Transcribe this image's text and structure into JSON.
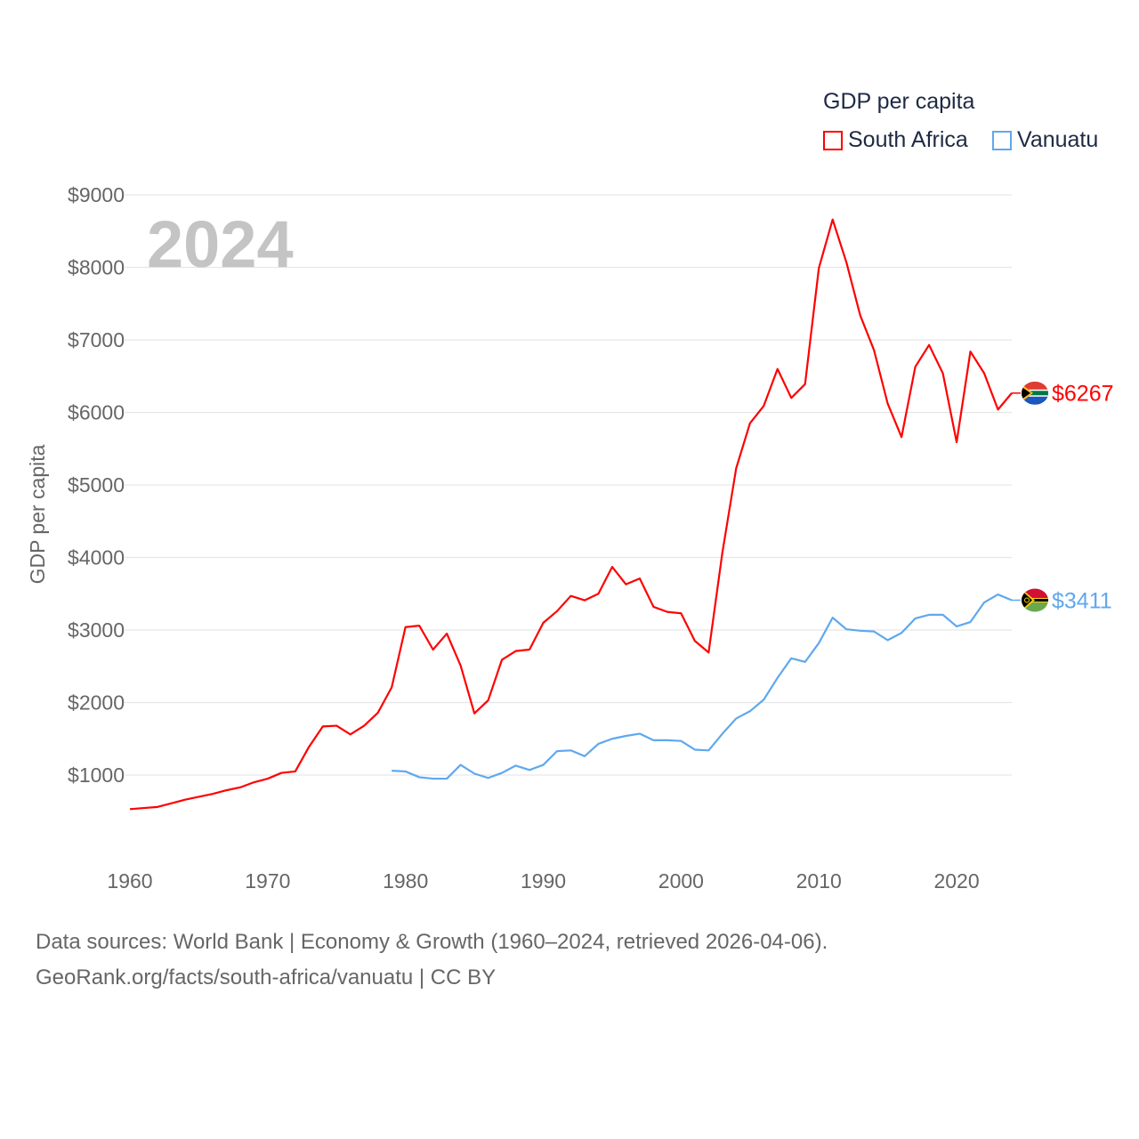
{
  "legend": {
    "title": "GDP per capita"
  },
  "footer": {
    "line1": "Data sources: World Bank | Economy & Growth (1960–2024, retrieved 2026-04-06).",
    "line2": "GeoRank.org/facts/south-africa/vanuatu | CC BY"
  },
  "chart_data": {
    "type": "line",
    "title": "",
    "year_label": "2024",
    "xlabel": "",
    "ylabel": "GDP per capita",
    "xlim": [
      1960,
      2024
    ],
    "ylim": [
      0,
      9000
    ],
    "x_ticks": [
      1960,
      1970,
      1980,
      1990,
      2000,
      2010,
      2020
    ],
    "y_ticks": [
      1000,
      2000,
      3000,
      4000,
      5000,
      6000,
      7000,
      8000,
      9000
    ],
    "y_tick_labels": [
      "$1000",
      "$2000",
      "$3000",
      "$4000",
      "$5000",
      "$6000",
      "$7000",
      "$8000",
      "$9000"
    ],
    "grid": true,
    "legend_position": "top-right",
    "series": [
      {
        "name": "South Africa",
        "color": "#ff0000",
        "start_year": 1960,
        "end_label": "$6267",
        "flag": "south-africa",
        "values": [
          530,
          545,
          560,
          610,
          660,
          700,
          740,
          790,
          830,
          900,
          950,
          1030,
          1050,
          1390,
          1670,
          1680,
          1560,
          1680,
          1860,
          2210,
          3040,
          3060,
          2730,
          2950,
          2510,
          1850,
          2030,
          2590,
          2710,
          2730,
          3100,
          3260,
          3470,
          3410,
          3500,
          3870,
          3630,
          3710,
          3320,
          3250,
          3230,
          2850,
          2690,
          4070,
          5230,
          5850,
          6090,
          6600,
          6200,
          6390,
          7990,
          8660,
          8070,
          7340,
          6860,
          6120,
          5660,
          6630,
          6930,
          6540,
          5590,
          6840,
          6540,
          6040,
          6267
        ]
      },
      {
        "name": "Vanuatu",
        "color": "#5fa8ee",
        "start_year": 1979,
        "end_label": "$3411",
        "flag": "vanuatu",
        "values": [
          1060,
          1050,
          970,
          950,
          950,
          1140,
          1020,
          960,
          1030,
          1130,
          1070,
          1140,
          1330,
          1340,
          1260,
          1430,
          1500,
          1540,
          1570,
          1480,
          1480,
          1470,
          1350,
          1340,
          1570,
          1780,
          1880,
          2040,
          2340,
          2610,
          2560,
          2820,
          3170,
          3010,
          2990,
          2980,
          2860,
          2960,
          3160,
          3210,
          3210,
          3050,
          3110,
          3380,
          3490,
          3411
        ]
      }
    ]
  }
}
